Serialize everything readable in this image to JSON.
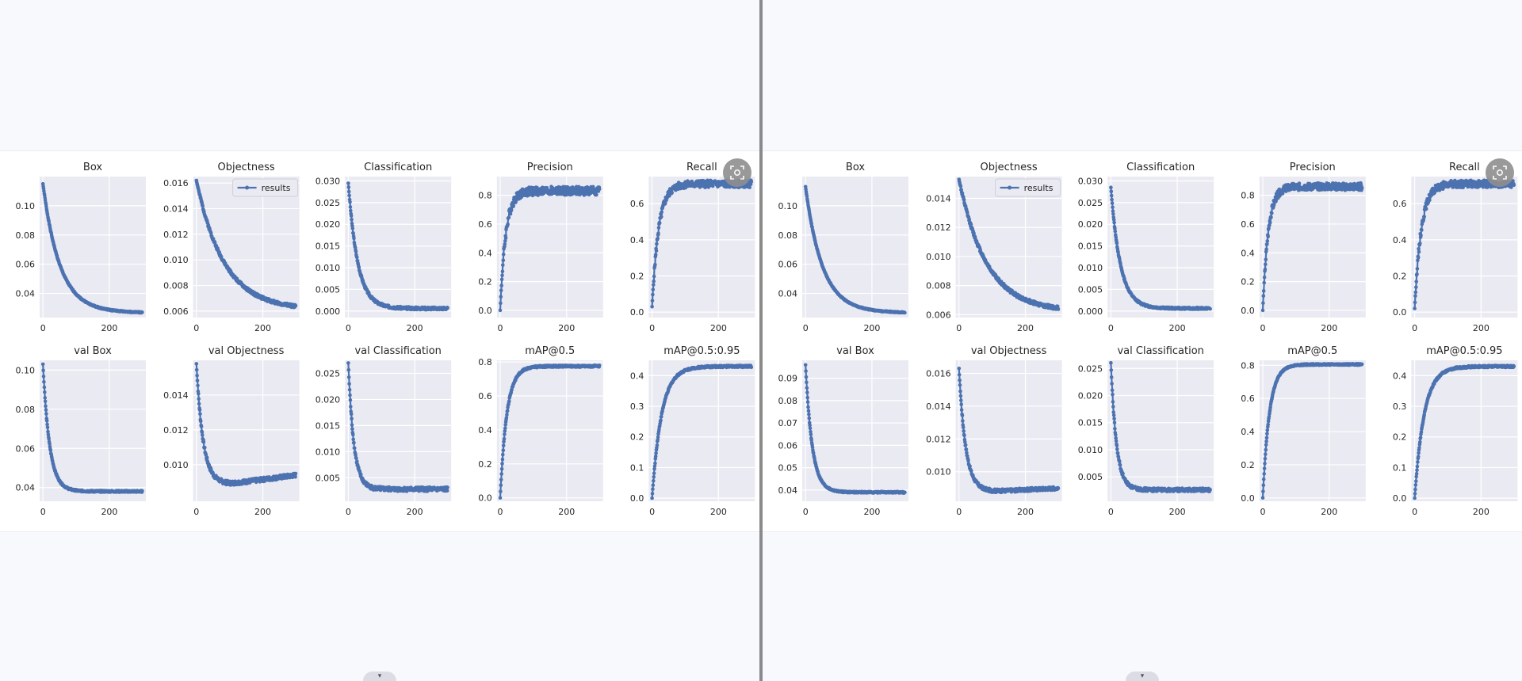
{
  "colors": {
    "series": "#4c72b0",
    "axes_bg": "#eaeaf2",
    "grid": "#ffffff",
    "page_bg": "#f8f9fd"
  },
  "ui": {
    "scan_icon": "image-scan-icon",
    "scroll_icon": "chevron-down-icon",
    "scroll_glyph": "▾"
  },
  "panels": [
    {
      "legend": "results",
      "chart_data": [
        {
          "type": "line",
          "title": "Box",
          "xlim": [
            -10,
            310
          ],
          "ylim": [
            0.0235,
            0.12
          ],
          "x_ticks": [
            0,
            200
          ],
          "y_ticks": [
            0.04,
            0.06,
            0.08,
            0.1
          ],
          "y_tick_labels": [
            "0.04",
            "0.06",
            "0.08",
            "0.10"
          ],
          "shape": "decay",
          "y_start": 0.115,
          "y_end": 0.0265,
          "k": 0.02,
          "knee": 0.04,
          "noise": 0.0004,
          "seed": 1,
          "grid": true,
          "legend": false
        },
        {
          "type": "line",
          "title": "Objectness",
          "xlim": [
            -10,
            310
          ],
          "ylim": [
            0.0055,
            0.0165
          ],
          "x_ticks": [
            0,
            200
          ],
          "y_ticks": [
            0.006,
            0.008,
            0.01,
            0.012,
            0.014,
            0.016
          ],
          "y_tick_labels": [
            "0.006",
            "0.008",
            "0.010",
            "0.012",
            "0.014",
            "0.016"
          ],
          "shape": "decay",
          "y_start": 0.0162,
          "y_end": 0.0061,
          "k": 0.012,
          "knee": 0.002,
          "noise": 0.00012,
          "seed": 2,
          "grid": true,
          "legend": true,
          "legend_loc": "upper-right"
        },
        {
          "type": "line",
          "title": "Classification",
          "xlim": [
            -10,
            310
          ],
          "ylim": [
            -0.0015,
            0.031
          ],
          "x_ticks": [
            0,
            200
          ],
          "y_ticks": [
            0,
            0.005,
            0.01,
            0.015,
            0.02,
            0.025,
            0.03
          ],
          "y_tick_labels": [
            "0.000",
            "0.005",
            "0.010",
            "0.015",
            "0.020",
            "0.025",
            "0.030"
          ],
          "shape": "decay",
          "y_start": 0.0295,
          "y_end": 0.0006,
          "k": 0.035,
          "knee": 0.0,
          "noise": 0.0003,
          "seed": 3,
          "grid": true,
          "legend": false
        },
        {
          "type": "line",
          "title": "Precision",
          "xlim": [
            -10,
            310
          ],
          "ylim": [
            -0.05,
            0.93
          ],
          "x_ticks": [
            0,
            200
          ],
          "y_ticks": [
            0,
            0.2,
            0.4,
            0.6,
            0.8
          ],
          "y_tick_labels": [
            "0.0",
            "0.2",
            "0.4",
            "0.6",
            "0.8"
          ],
          "shape": "rise",
          "y_start": 0.0,
          "y_end": 0.83,
          "k": 0.06,
          "noise": 0.03,
          "seed": 4,
          "grid": true,
          "legend": false
        },
        {
          "type": "line",
          "title": "Recall",
          "xlim": [
            -10,
            310
          ],
          "ylim": [
            -0.03,
            0.75
          ],
          "x_ticks": [
            0,
            200
          ],
          "y_ticks": [
            0,
            0.2,
            0.4,
            0.6
          ],
          "y_tick_labels": [
            "0.0",
            "0.2",
            "0.4",
            "0.6"
          ],
          "shape": "rise",
          "y_start": 0.03,
          "y_end": 0.71,
          "k": 0.05,
          "noise": 0.02,
          "seed": 5,
          "grid": true,
          "legend": false
        },
        {
          "type": "line",
          "title": "val Box",
          "xlim": [
            -10,
            310
          ],
          "ylim": [
            0.033,
            0.105
          ],
          "x_ticks": [
            0,
            200
          ],
          "y_ticks": [
            0.04,
            0.06,
            0.08,
            0.1
          ],
          "y_tick_labels": [
            "0.04",
            "0.06",
            "0.08",
            "0.10"
          ],
          "shape": "decay",
          "y_start": 0.103,
          "y_end": 0.038,
          "k": 0.05,
          "knee": 0.003,
          "noise": 0.0004,
          "seed": 6,
          "grid": true,
          "legend": false
        },
        {
          "type": "line",
          "title": "val Objectness",
          "xlim": [
            -10,
            310
          ],
          "ylim": [
            0.0079,
            0.016
          ],
          "x_ticks": [
            0,
            200
          ],
          "y_ticks": [
            0.01,
            0.012,
            0.014
          ],
          "y_tick_labels": [
            "0.010",
            "0.012",
            "0.014"
          ],
          "shape": "val_obj",
          "y_start": 0.0158,
          "y_min": 0.0089,
          "y_end": 0.0094,
          "k": 0.05,
          "noise": 0.00012,
          "seed": 7,
          "grid": true,
          "legend": false
        },
        {
          "type": "line",
          "title": "val Classification",
          "xlim": [
            -10,
            310
          ],
          "ylim": [
            0.0005,
            0.0275
          ],
          "x_ticks": [
            0,
            200
          ],
          "y_ticks": [
            0.005,
            0.01,
            0.015,
            0.02,
            0.025
          ],
          "y_tick_labels": [
            "0.005",
            "0.010",
            "0.015",
            "0.020",
            "0.025"
          ],
          "shape": "decay",
          "y_start": 0.027,
          "y_end": 0.0028,
          "k": 0.06,
          "knee": 0.001,
          "noise": 0.0004,
          "seed": 8,
          "grid": true,
          "legend": false
        },
        {
          "type": "line",
          "title": "mAP@0.5",
          "xlim": [
            -10,
            310
          ],
          "ylim": [
            -0.02,
            0.81
          ],
          "x_ticks": [
            0,
            200
          ],
          "y_ticks": [
            0,
            0.2,
            0.4,
            0.6,
            0.8
          ],
          "y_tick_labels": [
            "0.0",
            "0.2",
            "0.4",
            "0.6",
            "0.8"
          ],
          "shape": "rise",
          "y_start": 0.0,
          "y_end": 0.775,
          "k": 0.05,
          "noise": 0.005,
          "seed": 9,
          "grid": true,
          "legend": false
        },
        {
          "type": "line",
          "title": "mAP@0.5:0.95",
          "xlim": [
            -10,
            310
          ],
          "ylim": [
            -0.01,
            0.45
          ],
          "x_ticks": [
            0,
            200
          ],
          "y_ticks": [
            0,
            0.1,
            0.2,
            0.3,
            0.4
          ],
          "y_tick_labels": [
            "0.0",
            "0.1",
            "0.2",
            "0.3",
            "0.4"
          ],
          "shape": "rise",
          "y_start": 0.0,
          "y_end": 0.43,
          "k": 0.035,
          "noise": 0.003,
          "seed": 10,
          "grid": true,
          "legend": false
        }
      ]
    },
    {
      "legend": "results",
      "chart_data": [
        {
          "type": "line",
          "title": "Box",
          "xlim": [
            -10,
            310
          ],
          "ylim": [
            0.0235,
            0.12
          ],
          "x_ticks": [
            0,
            200
          ],
          "y_ticks": [
            0.04,
            0.06,
            0.08,
            0.1
          ],
          "y_tick_labels": [
            "0.04",
            "0.06",
            "0.08",
            "0.10"
          ],
          "shape": "decay",
          "y_start": 0.113,
          "y_end": 0.0265,
          "k": 0.02,
          "knee": 0.04,
          "noise": 0.0003,
          "seed": 11,
          "grid": true,
          "legend": false
        },
        {
          "type": "line",
          "title": "Objectness",
          "xlim": [
            -10,
            310
          ],
          "ylim": [
            0.0058,
            0.0155
          ],
          "x_ticks": [
            0,
            200
          ],
          "y_ticks": [
            0.006,
            0.008,
            0.01,
            0.012,
            0.014
          ],
          "y_tick_labels": [
            "0.006",
            "0.008",
            "0.010",
            "0.012",
            "0.014"
          ],
          "shape": "decay",
          "y_start": 0.0153,
          "y_end": 0.0062,
          "k": 0.012,
          "knee": 0.002,
          "noise": 0.00012,
          "seed": 12,
          "grid": true,
          "legend": true,
          "legend_loc": "upper-right"
        },
        {
          "type": "line",
          "title": "Classification",
          "xlim": [
            -10,
            310
          ],
          "ylim": [
            -0.0015,
            0.031
          ],
          "x_ticks": [
            0,
            200
          ],
          "y_ticks": [
            0,
            0.005,
            0.01,
            0.015,
            0.02,
            0.025,
            0.03
          ],
          "y_tick_labels": [
            "0.000",
            "0.005",
            "0.010",
            "0.015",
            "0.020",
            "0.025",
            "0.030"
          ],
          "shape": "decay",
          "y_start": 0.0285,
          "y_end": 0.0006,
          "k": 0.035,
          "knee": 0.0,
          "noise": 0.0002,
          "seed": 13,
          "grid": true,
          "legend": false
        },
        {
          "type": "line",
          "title": "Precision",
          "xlim": [
            -10,
            310
          ],
          "ylim": [
            -0.05,
            0.93
          ],
          "x_ticks": [
            0,
            200
          ],
          "y_ticks": [
            0,
            0.2,
            0.4,
            0.6,
            0.8
          ],
          "y_tick_labels": [
            "0.0",
            "0.2",
            "0.4",
            "0.6",
            "0.8"
          ],
          "shape": "rise",
          "y_start": 0.0,
          "y_end": 0.86,
          "k": 0.06,
          "noise": 0.025,
          "seed": 14,
          "grid": true,
          "legend": false
        },
        {
          "type": "line",
          "title": "Recall",
          "xlim": [
            -10,
            310
          ],
          "ylim": [
            -0.03,
            0.75
          ],
          "x_ticks": [
            0,
            200
          ],
          "y_ticks": [
            0,
            0.2,
            0.4,
            0.6
          ],
          "y_tick_labels": [
            "0.0",
            "0.2",
            "0.4",
            "0.6"
          ],
          "shape": "rise",
          "y_start": 0.02,
          "y_end": 0.71,
          "k": 0.05,
          "noise": 0.02,
          "seed": 15,
          "grid": true,
          "legend": false
        },
        {
          "type": "line",
          "title": "val Box",
          "xlim": [
            -10,
            310
          ],
          "ylim": [
            0.035,
            0.098
          ],
          "x_ticks": [
            0,
            200
          ],
          "y_ticks": [
            0.04,
            0.05,
            0.06,
            0.07,
            0.08,
            0.09
          ],
          "y_tick_labels": [
            "0.04",
            "0.05",
            "0.06",
            "0.07",
            "0.08",
            "0.09"
          ],
          "shape": "decay",
          "y_start": 0.096,
          "y_end": 0.039,
          "k": 0.05,
          "knee": 0.002,
          "noise": 0.0003,
          "seed": 16,
          "grid": true,
          "legend": false
        },
        {
          "type": "line",
          "title": "val Objectness",
          "xlim": [
            -10,
            310
          ],
          "ylim": [
            0.0082,
            0.0168
          ],
          "x_ticks": [
            0,
            200
          ],
          "y_ticks": [
            0.01,
            0.012,
            0.014,
            0.016
          ],
          "y_tick_labels": [
            "0.010",
            "0.012",
            "0.014",
            "0.016"
          ],
          "shape": "val_obj",
          "y_start": 0.0163,
          "y_min": 0.0088,
          "y_end": 0.009,
          "k": 0.05,
          "noise": 0.0001,
          "seed": 17,
          "grid": true,
          "legend": false
        },
        {
          "type": "line",
          "title": "val Classification",
          "xlim": [
            -10,
            310
          ],
          "ylim": [
            0.0005,
            0.0265
          ],
          "x_ticks": [
            0,
            200
          ],
          "y_ticks": [
            0.005,
            0.01,
            0.015,
            0.02,
            0.025
          ],
          "y_tick_labels": [
            "0.005",
            "0.010",
            "0.015",
            "0.020",
            "0.025"
          ],
          "shape": "decay",
          "y_start": 0.026,
          "y_end": 0.0026,
          "k": 0.06,
          "knee": 0.001,
          "noise": 0.0003,
          "seed": 18,
          "grid": true,
          "legend": false
        },
        {
          "type": "line",
          "title": "mAP@0.5",
          "xlim": [
            -10,
            310
          ],
          "ylim": [
            -0.02,
            0.83
          ],
          "x_ticks": [
            0,
            200
          ],
          "y_ticks": [
            0,
            0.2,
            0.4,
            0.6,
            0.8
          ],
          "y_tick_labels": [
            "0.0",
            "0.2",
            "0.4",
            "0.6",
            "0.8"
          ],
          "shape": "rise",
          "y_start": 0.0,
          "y_end": 0.805,
          "k": 0.05,
          "noise": 0.004,
          "seed": 19,
          "grid": true,
          "legend": false
        },
        {
          "type": "line",
          "title": "mAP@0.5:0.95",
          "xlim": [
            -10,
            310
          ],
          "ylim": [
            -0.01,
            0.45
          ],
          "x_ticks": [
            0,
            200
          ],
          "y_ticks": [
            0,
            0.1,
            0.2,
            0.3,
            0.4
          ],
          "y_tick_labels": [
            "0.0",
            "0.1",
            "0.2",
            "0.3",
            "0.4"
          ],
          "shape": "rise",
          "y_start": 0.0,
          "y_end": 0.43,
          "k": 0.035,
          "noise": 0.003,
          "seed": 20,
          "grid": true,
          "legend": false
        }
      ]
    }
  ]
}
